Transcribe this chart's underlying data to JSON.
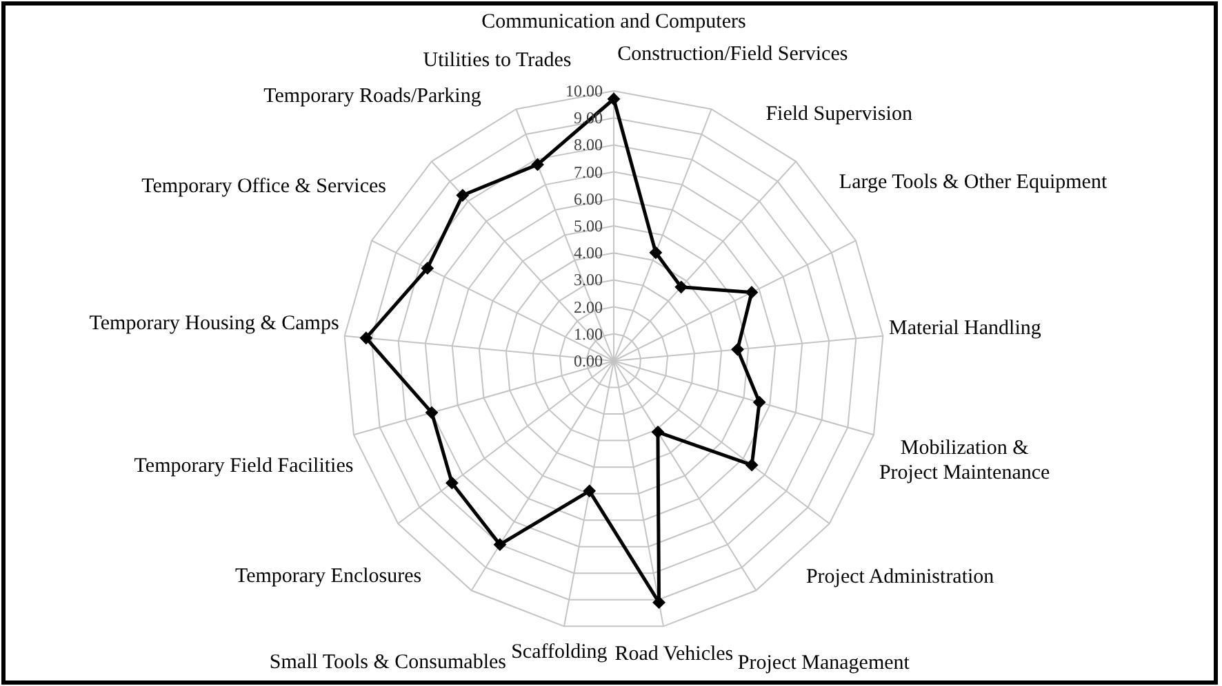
{
  "chart_data": {
    "type": "radar",
    "categories": [
      "Communication and Computers",
      "Construction/Field Services",
      "Field Supervision",
      "Large Tools & Other Equipment",
      "Material Handling",
      "Mobilization & Project Maintenance",
      "Project Administration",
      "Project Management",
      "Road Vehicles",
      "Scaffolding",
      "Small Tools & Consumables",
      "Temporary Enclosures",
      "Temporary Field Facilities",
      "Temporary Housing & Camps",
      "Temporary Office & Services",
      "Temporary Roads/Parking",
      "Utilities to Trades"
    ],
    "series": [
      {
        "color": "#000000",
        "values": [
          9.7,
          4.3,
          3.7,
          5.7,
          4.6,
          5.6,
          6.4,
          3.1,
          9.1,
          4.9,
          8.0,
          7.5,
          7.0,
          9.2,
          7.7,
          8.3,
          7.8
        ]
      }
    ],
    "ylim": [
      0,
      10
    ],
    "yticks": [
      {
        "value": 0,
        "label": "0.00"
      },
      {
        "value": 1,
        "label": "1.00"
      },
      {
        "value": 2,
        "label": "2.00"
      },
      {
        "value": 3,
        "label": "3.00"
      },
      {
        "value": 4,
        "label": "4.00"
      },
      {
        "value": 5,
        "label": "5.00"
      },
      {
        "value": 6,
        "label": "6.00"
      },
      {
        "value": 7,
        "label": "7.00"
      },
      {
        "value": 8,
        "label": "8.00"
      },
      {
        "value": 9,
        "label": "9.00"
      },
      {
        "value": 10,
        "label": "10.00"
      }
    ],
    "grid": true,
    "marker": "diamond",
    "line_style": "solid"
  }
}
